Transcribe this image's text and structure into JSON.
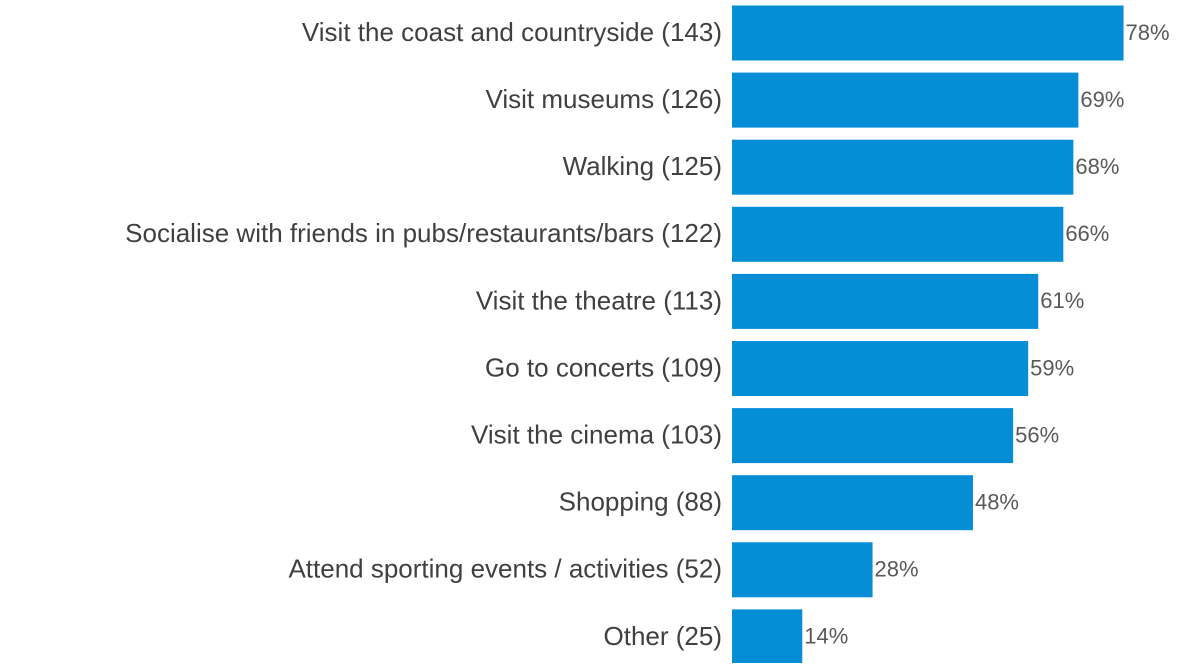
{
  "chart_data": {
    "type": "bar",
    "orientation": "horizontal",
    "categories": [
      "Visit the coast and countryside (143)",
      "Visit museums (126)",
      "Walking (125)",
      "Socialise with friends in pubs/restaurants/bars (122)",
      "Visit the theatre (113)",
      "Go to concerts (109)",
      "Visit the cinema (103)",
      "Shopping (88)",
      "Attend sporting events / activities (52)",
      "Other (25)"
    ],
    "values": [
      78,
      69,
      68,
      66,
      61,
      59,
      56,
      48,
      28,
      14
    ],
    "value_labels": [
      "78%",
      "69%",
      "68%",
      "66%",
      "61%",
      "59%",
      "56%",
      "48%",
      "28%",
      "14%"
    ],
    "color": "#058dd6"
  }
}
